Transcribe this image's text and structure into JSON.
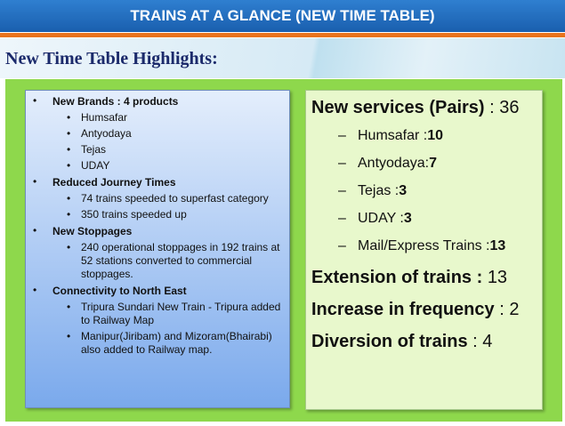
{
  "header": {
    "title": "TRAINS AT A GLANCE (NEW TIME TABLE)",
    "subtitle": "New Time Table Highlights:"
  },
  "left_panel": {
    "groups": [
      {
        "heading": "New Brands : 4 products",
        "items": [
          "Humsafar",
          "Antyodaya",
          "Tejas",
          "UDAY"
        ]
      },
      {
        "heading": "Reduced Journey Times",
        "items": [
          "74 trains speeded to superfast category",
          "350 trains speeded up"
        ]
      },
      {
        "heading": "New Stoppages",
        "items": [
          "240 operational stoppages in 192 trains at 52 stations converted to commercial stoppages."
        ]
      },
      {
        "heading": "Connectivity to North East",
        "items": [
          "Tripura Sundari New Train - Tripura added to Railway Map",
          "Manipur(Jiribam) and Mizoram(Bhairabi) also added to Railway map."
        ]
      }
    ]
  },
  "right_panel": {
    "services": {
      "label": "New services (Pairs)",
      "sep": ":",
      "value": 36,
      "items": [
        {
          "label": "Humsafar :",
          "value": 10
        },
        {
          "label": "Antyodaya:",
          "value": 7
        },
        {
          "label": "Tejas       :",
          "value": 3
        },
        {
          "label": "UDAY :",
          "value": 3
        },
        {
          "label": "Mail/Express Trains :",
          "value": 13
        }
      ]
    },
    "extension": {
      "label": "Extension of trains :",
      "value": 13
    },
    "frequency": {
      "label": "Increase in frequency",
      "sep": ":",
      "value": 2
    },
    "diversion": {
      "label": "Diversion of trains",
      "sep": ":",
      "value": 4
    }
  }
}
